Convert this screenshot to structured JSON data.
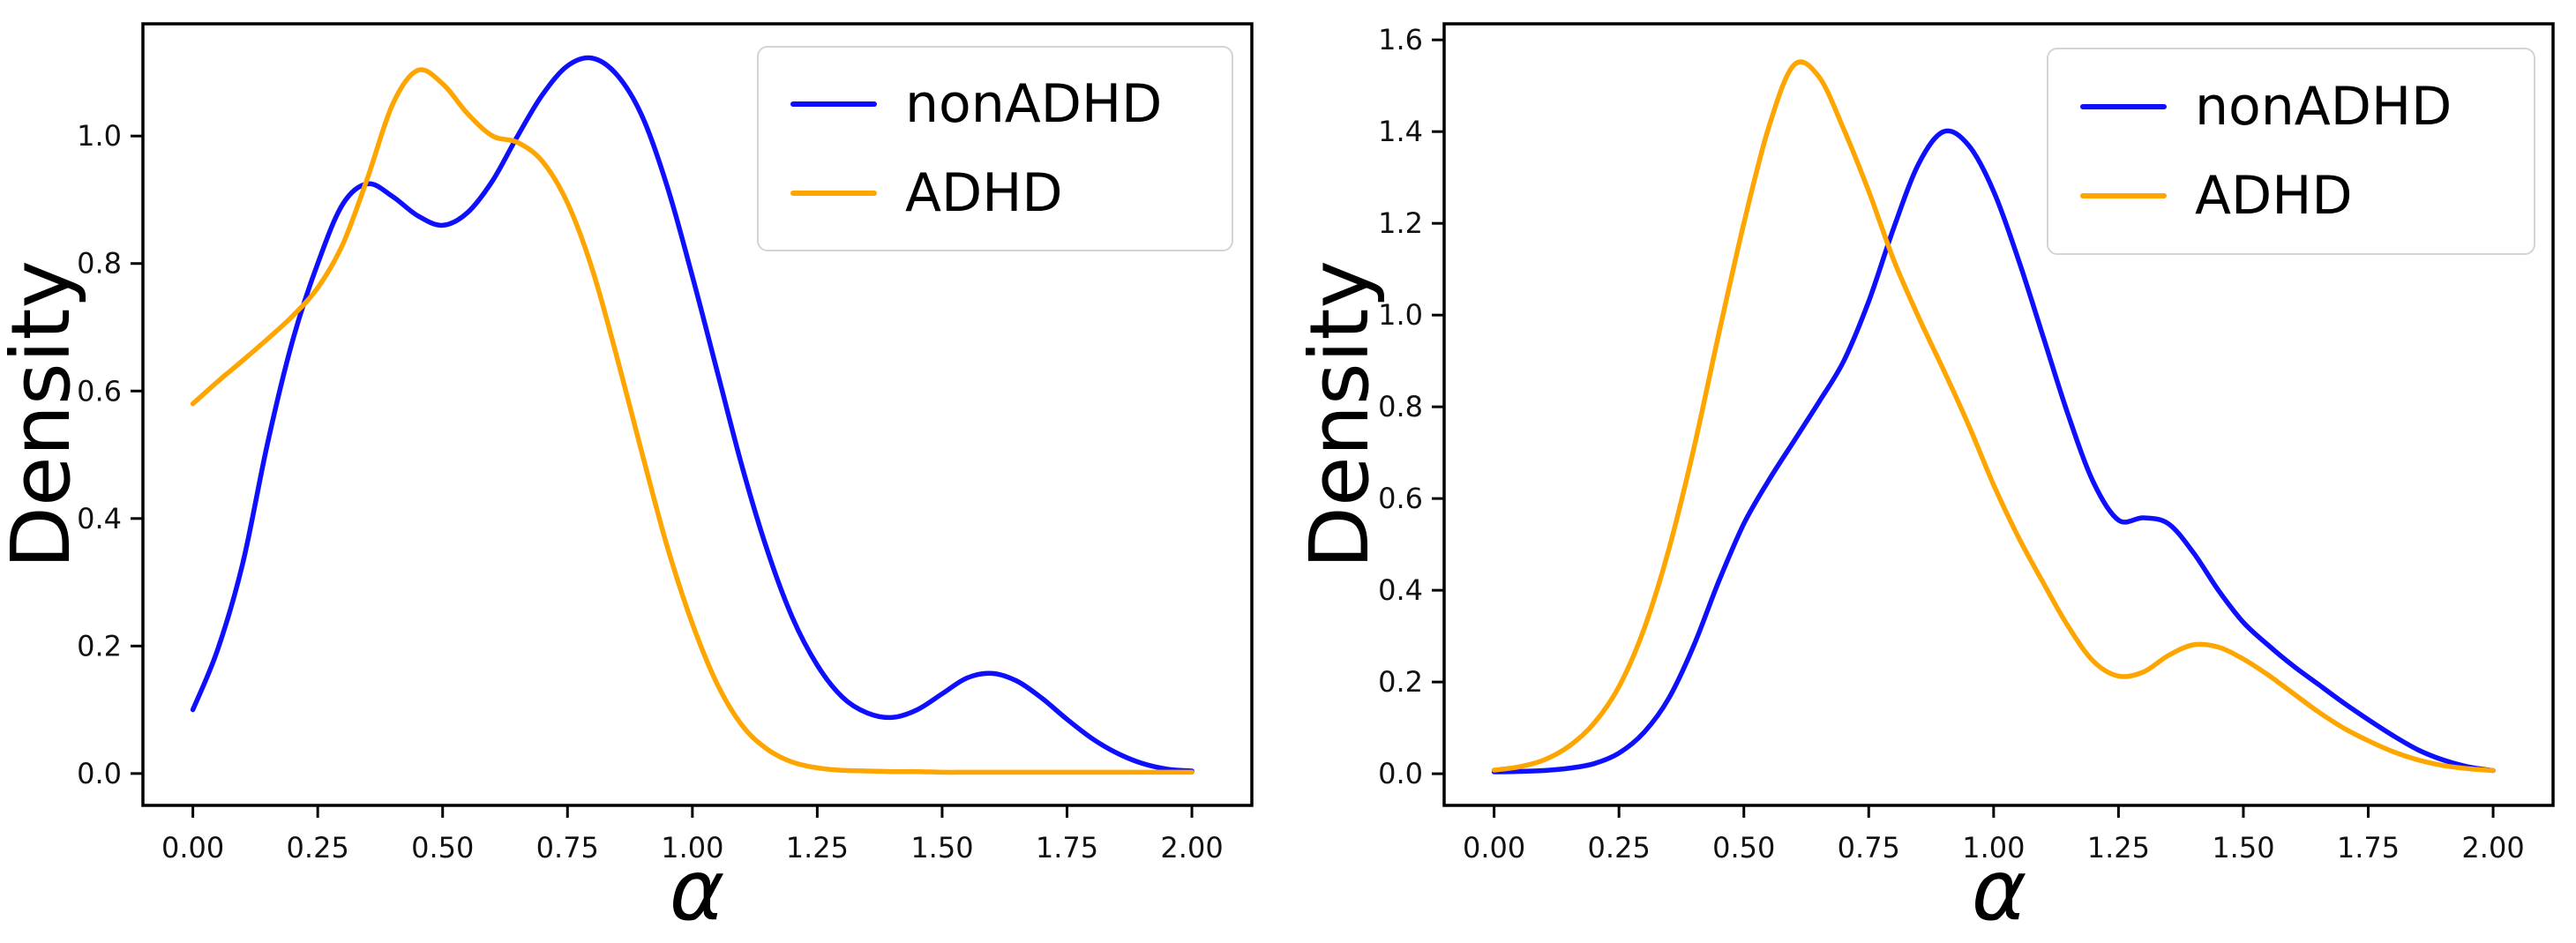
{
  "figure": {
    "background": "#ffffff",
    "colors": {
      "nonADHD": "#0f0fff",
      "ADHD": "#ffa500",
      "axis": "#000000",
      "tick_label": "#111111",
      "legend_border": "#d4d4d4"
    }
  },
  "legend": {
    "position": "upper right",
    "entries": [
      {
        "label": "nonADHD",
        "color": "#0f0fff"
      },
      {
        "label": "ADHD",
        "color": "#ffa500"
      }
    ]
  },
  "chart_data": [
    {
      "id": "left-panel",
      "type": "line",
      "subtype": "kde-density",
      "title": "",
      "xlabel": "α",
      "ylabel": "Density",
      "grid": false,
      "legend_position": "upper right",
      "xlim": [
        -0.1,
        2.12
      ],
      "ylim": [
        -0.05,
        1.176
      ],
      "x_ticks": [
        0.0,
        0.25,
        0.5,
        0.75,
        1.0,
        1.25,
        1.5,
        1.75,
        2.0
      ],
      "x_tick_labels": [
        "0.00",
        "0.25",
        "0.50",
        "0.75",
        "1.00",
        "1.25",
        "1.50",
        "1.75",
        "2.00"
      ],
      "y_ticks": [
        0.0,
        0.2,
        0.4,
        0.6,
        0.8,
        1.0
      ],
      "y_tick_labels": [
        "0.0",
        "0.2",
        "0.4",
        "0.6",
        "0.8",
        "1.0"
      ],
      "x": [
        0.0,
        0.05,
        0.1,
        0.15,
        0.2,
        0.25,
        0.3,
        0.35,
        0.4,
        0.45,
        0.5,
        0.55,
        0.6,
        0.65,
        0.7,
        0.75,
        0.8,
        0.85,
        0.9,
        0.95,
        1.0,
        1.05,
        1.1,
        1.15,
        1.2,
        1.25,
        1.3,
        1.35,
        1.4,
        1.45,
        1.5,
        1.55,
        1.6,
        1.65,
        1.7,
        1.75,
        1.8,
        1.85,
        1.9,
        1.95,
        2.0
      ],
      "series": [
        {
          "name": "nonADHD",
          "color": "#0f0fff",
          "values": [
            0.1,
            0.195,
            0.33,
            0.52,
            0.68,
            0.8,
            0.893,
            0.925,
            0.905,
            0.875,
            0.86,
            0.88,
            0.93,
            1.0,
            1.065,
            1.11,
            1.122,
            1.095,
            1.03,
            0.92,
            0.78,
            0.63,
            0.48,
            0.35,
            0.245,
            0.17,
            0.12,
            0.095,
            0.088,
            0.1,
            0.125,
            0.15,
            0.157,
            0.145,
            0.118,
            0.085,
            0.055,
            0.032,
            0.016,
            0.007,
            0.004
          ]
        },
        {
          "name": "ADHD",
          "color": "#ffa500",
          "values": [
            0.58,
            0.615,
            0.648,
            0.682,
            0.718,
            0.762,
            0.83,
            0.935,
            1.05,
            1.103,
            1.082,
            1.035,
            1.0,
            0.99,
            0.96,
            0.895,
            0.79,
            0.65,
            0.5,
            0.355,
            0.235,
            0.14,
            0.075,
            0.038,
            0.018,
            0.009,
            0.005,
            0.004,
            0.003,
            0.003,
            0.002,
            0.002,
            0.002,
            0.002,
            0.002,
            0.002,
            0.002,
            0.002,
            0.002,
            0.002,
            0.002
          ]
        }
      ]
    },
    {
      "id": "right-panel",
      "type": "line",
      "subtype": "kde-density",
      "title": "",
      "xlabel": "α",
      "ylabel": "Density",
      "grid": false,
      "legend_position": "upper right",
      "xlim": [
        -0.1,
        2.12
      ],
      "ylim": [
        -0.069,
        1.635
      ],
      "x_ticks": [
        0.0,
        0.25,
        0.5,
        0.75,
        1.0,
        1.25,
        1.5,
        1.75,
        2.0
      ],
      "x_tick_labels": [
        "0.00",
        "0.25",
        "0.50",
        "0.75",
        "1.00",
        "1.25",
        "1.50",
        "1.75",
        "2.00"
      ],
      "y_ticks": [
        0.0,
        0.2,
        0.4,
        0.6,
        0.8,
        1.0,
        1.2,
        1.4,
        1.6
      ],
      "y_tick_labels": [
        "0.0",
        "0.2",
        "0.4",
        "0.6",
        "0.8",
        "1.0",
        "1.2",
        "1.4",
        "1.6"
      ],
      "x": [
        0.0,
        0.05,
        0.1,
        0.15,
        0.2,
        0.25,
        0.3,
        0.35,
        0.4,
        0.45,
        0.5,
        0.55,
        0.6,
        0.65,
        0.7,
        0.75,
        0.8,
        0.85,
        0.9,
        0.95,
        1.0,
        1.05,
        1.1,
        1.15,
        1.2,
        1.25,
        1.3,
        1.35,
        1.4,
        1.45,
        1.5,
        1.55,
        1.6,
        1.65,
        1.7,
        1.75,
        1.8,
        1.85,
        1.9,
        1.95,
        2.0
      ],
      "series": [
        {
          "name": "nonADHD",
          "color": "#0f0fff",
          "values": [
            0.004,
            0.005,
            0.007,
            0.012,
            0.022,
            0.045,
            0.09,
            0.165,
            0.28,
            0.42,
            0.545,
            0.64,
            0.725,
            0.81,
            0.9,
            1.03,
            1.19,
            1.33,
            1.4,
            1.37,
            1.27,
            1.12,
            0.95,
            0.78,
            0.635,
            0.553,
            0.558,
            0.545,
            0.482,
            0.4,
            0.33,
            0.28,
            0.235,
            0.195,
            0.155,
            0.118,
            0.083,
            0.052,
            0.03,
            0.015,
            0.007
          ]
        },
        {
          "name": "ADHD",
          "color": "#ffa500",
          "values": [
            0.008,
            0.015,
            0.03,
            0.06,
            0.11,
            0.19,
            0.315,
            0.49,
            0.71,
            0.96,
            1.2,
            1.41,
            1.545,
            1.52,
            1.405,
            1.27,
            1.12,
            0.995,
            0.88,
            0.76,
            0.63,
            0.515,
            0.415,
            0.32,
            0.245,
            0.213,
            0.222,
            0.258,
            0.281,
            0.276,
            0.25,
            0.215,
            0.175,
            0.135,
            0.1,
            0.072,
            0.048,
            0.03,
            0.018,
            0.011,
            0.007
          ]
        }
      ]
    }
  ]
}
